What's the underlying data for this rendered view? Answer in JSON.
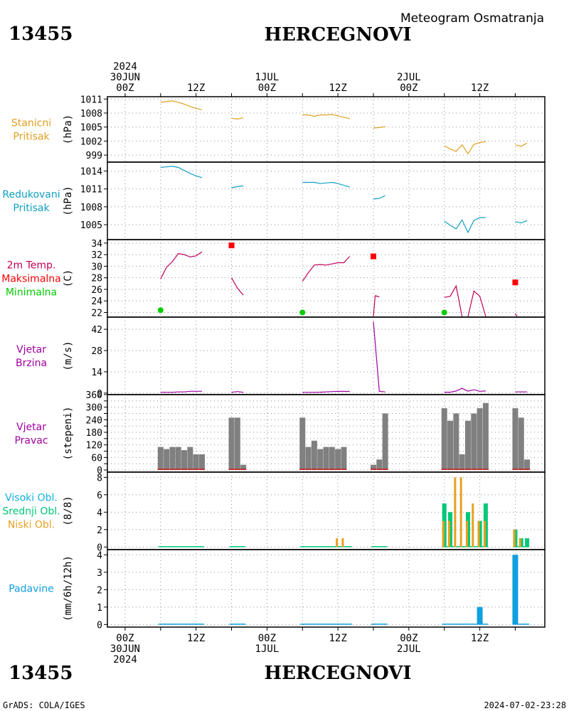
{
  "header": {
    "station_id": "13455",
    "station_name": "HERCEGNOVI",
    "product": "Meteogram Osmatranja",
    "footer_left": "GrADS: COLA/IGES",
    "footer_right": "2024-07-02-23:28"
  },
  "colors": {
    "pressure": "#e0a020",
    "reduced": "#10a0c0",
    "temp": "#c0005a",
    "max": "#ff0000",
    "min": "#00cc00",
    "wind": "#a000a0",
    "dir": "#808080",
    "dir_small": "#c03030",
    "high_cloud": "#10b0e0",
    "mid_cloud": "#00c878",
    "low_cloud": "#e8a020",
    "precip": "#10a0e0"
  },
  "time_axis": {
    "top_labels": [
      {
        "t": 0,
        "lines": [
          "2024",
          "30JUN",
          "00Z"
        ]
      },
      {
        "t": 12,
        "lines": [
          "12Z"
        ]
      },
      {
        "t": 24,
        "lines": [
          "1JUL",
          "00Z"
        ]
      },
      {
        "t": 36,
        "lines": [
          "12Z"
        ]
      },
      {
        "t": 48,
        "lines": [
          "2JUL",
          "00Z"
        ]
      },
      {
        "t": 60,
        "lines": [
          "12Z"
        ]
      }
    ],
    "bottom_labels": [
      {
        "t": 0,
        "lines": [
          "00Z",
          "30JUN",
          "2024"
        ]
      },
      {
        "t": 12,
        "lines": [
          "12Z"
        ]
      },
      {
        "t": 24,
        "lines": [
          "00Z",
          "1JUL"
        ]
      },
      {
        "t": 36,
        "lines": [
          "12Z"
        ]
      },
      {
        "t": 48,
        "lines": [
          "00Z",
          "2JUL"
        ]
      },
      {
        "t": 60,
        "lines": [
          "12Z"
        ]
      }
    ]
  },
  "chart_data": [
    {
      "type": "line",
      "id": "p1",
      "labels": [
        "Stanicni",
        "Pritisak"
      ],
      "ylabel": "(hPa)",
      "yticks": [
        999,
        1002,
        1005,
        1008,
        1011
      ],
      "ylim": [
        997.5,
        1011.5
      ],
      "series": [
        {
          "color_key": "pressure",
          "segments": [
            [
              [
                6,
                1010.3
              ],
              [
                7,
                1010.5
              ],
              [
                8,
                1010.6
              ],
              [
                9,
                1010.3
              ],
              [
                10,
                1009.9
              ],
              [
                11,
                1009.4
              ],
              [
                12,
                1009.0
              ],
              [
                13,
                1008.7
              ]
            ],
            [
              [
                18,
                1006.9
              ],
              [
                19,
                1006.7
              ],
              [
                20,
                1007.0
              ]
            ],
            [
              [
                30,
                1007.6
              ],
              [
                31,
                1007.6
              ],
              [
                32,
                1007.3
              ],
              [
                33,
                1007.6
              ],
              [
                34,
                1007.6
              ],
              [
                35,
                1007.7
              ],
              [
                36,
                1007.4
              ],
              [
                37,
                1007.1
              ],
              [
                38,
                1006.8
              ]
            ],
            [
              [
                42,
                1004.8
              ],
              [
                43,
                1004.9
              ],
              [
                44,
                1005.1
              ]
            ],
            [
              [
                54,
                1001.0
              ],
              [
                55,
                1000.3
              ],
              [
                56,
                999.8
              ],
              [
                57,
                1001.2
              ],
              [
                58,
                999.3
              ],
              [
                59,
                1001.3
              ],
              [
                60,
                1001.7
              ],
              [
                61,
                1001.9
              ]
            ],
            [
              [
                66,
                1001.2
              ],
              [
                67,
                1000.9
              ],
              [
                68,
                1001.6
              ]
            ]
          ]
        }
      ]
    },
    {
      "type": "line",
      "id": "p2",
      "labels": [
        "Redukovani",
        "Pritisak"
      ],
      "ylabel": "(hPa)",
      "yticks": [
        1005,
        1008,
        1011,
        1014
      ],
      "ylim": [
        1002.5,
        1015.5
      ],
      "series": [
        {
          "color_key": "reduced",
          "segments": [
            [
              [
                6,
                1014.6
              ],
              [
                7,
                1014.7
              ],
              [
                8,
                1014.8
              ],
              [
                9,
                1014.6
              ],
              [
                10,
                1014.1
              ],
              [
                11,
                1013.6
              ],
              [
                12,
                1013.2
              ],
              [
                13,
                1012.9
              ]
            ],
            [
              [
                18,
                1011.2
              ],
              [
                19,
                1011.4
              ],
              [
                20,
                1011.5
              ]
            ],
            [
              [
                30,
                1012.1
              ],
              [
                31,
                1012.1
              ],
              [
                32,
                1012.1
              ],
              [
                33,
                1011.9
              ],
              [
                34,
                1012.0
              ],
              [
                35,
                1012.1
              ],
              [
                36,
                1011.9
              ],
              [
                37,
                1011.6
              ],
              [
                38,
                1011.3
              ]
            ],
            [
              [
                42,
                1009.3
              ],
              [
                43,
                1009.4
              ],
              [
                44,
                1009.9
              ]
            ],
            [
              [
                54,
                1005.6
              ],
              [
                55,
                1004.9
              ],
              [
                56,
                1004.3
              ],
              [
                57,
                1005.8
              ],
              [
                58,
                1003.7
              ],
              [
                59,
                1005.7
              ],
              [
                60,
                1006.2
              ],
              [
                61,
                1006.2
              ]
            ],
            [
              [
                66,
                1005.5
              ],
              [
                67,
                1005.3
              ],
              [
                68,
                1005.7
              ]
            ]
          ]
        }
      ]
    },
    {
      "type": "line",
      "id": "p3",
      "labels": [
        "2m Temp.",
        "Maksimalna",
        "Minimalna"
      ],
      "label_color_keys": [
        "temp",
        "max",
        "min"
      ],
      "ylabel": "(C)",
      "yticks": [
        22,
        24,
        26,
        28,
        30,
        32,
        34
      ],
      "ylim": [
        21.2,
        34.6
      ],
      "series": [
        {
          "color_key": "temp",
          "segments": [
            [
              [
                6,
                27.8
              ],
              [
                7,
                29.8
              ],
              [
                8,
                30.8
              ],
              [
                9,
                32.2
              ],
              [
                10,
                32.0
              ],
              [
                11,
                31.6
              ],
              [
                12,
                31.8
              ],
              [
                13,
                32.5
              ]
            ],
            [
              [
                18,
                28.0
              ],
              [
                19,
                26.2
              ],
              [
                20,
                25.0
              ]
            ],
            [
              [
                30,
                27.4
              ],
              [
                31,
                28.9
              ],
              [
                32,
                30.2
              ],
              [
                33,
                30.3
              ],
              [
                34,
                30.2
              ],
              [
                35,
                30.4
              ],
              [
                36,
                30.6
              ],
              [
                37,
                30.6
              ],
              [
                38,
                31.7
              ]
            ],
            [
              [
                42,
                20.5
              ],
              [
                42.3,
                24.9
              ],
              [
                43,
                24.7
              ]
            ],
            [
              [
                54,
                24.6
              ],
              [
                55,
                24.8
              ],
              [
                56,
                26.6
              ],
              [
                57,
                20.0
              ]
            ],
            [
              [
                58,
                20.0
              ],
              [
                59,
                25.7
              ],
              [
                60,
                24.8
              ],
              [
                61,
                20.0
              ]
            ],
            [
              [
                66,
                21.8
              ],
              [
                66.3,
                21.1
              ]
            ]
          ]
        }
      ],
      "points": [
        {
          "t": 18,
          "v": 33.6,
          "shape": "square",
          "color_key": "max"
        },
        {
          "t": 42,
          "v": 31.7,
          "shape": "square",
          "color_key": "max"
        },
        {
          "t": 66,
          "v": 27.2,
          "shape": "square",
          "color_key": "max"
        },
        {
          "t": 6,
          "v": 22.4,
          "shape": "circle",
          "color_key": "min"
        },
        {
          "t": 30,
          "v": 22.0,
          "shape": "circle",
          "color_key": "min"
        },
        {
          "t": 54,
          "v": 22.0,
          "shape": "circle",
          "color_key": "min"
        }
      ]
    },
    {
      "type": "line",
      "id": "p4",
      "labels": [
        "Vjetar",
        "Brzina"
      ],
      "ylabel": "(m/s)",
      "yticks": [
        0,
        14,
        28,
        42
      ],
      "ylim": [
        -1,
        50
      ],
      "series": [
        {
          "color_key": "wind",
          "segments": [
            [
              [
                6,
                0.5
              ],
              [
                7,
                0.5
              ],
              [
                8,
                0.5
              ],
              [
                9,
                0.8
              ],
              [
                10,
                0.8
              ],
              [
                11,
                1.2
              ],
              [
                12,
                1.2
              ],
              [
                13,
                1.2
              ]
            ],
            [
              [
                18,
                0.5
              ],
              [
                19,
                1.0
              ],
              [
                20,
                0.5
              ]
            ],
            [
              [
                30,
                0.5
              ],
              [
                31,
                0.5
              ],
              [
                32,
                0.5
              ],
              [
                33,
                0.6
              ],
              [
                34,
                0.8
              ],
              [
                35,
                1.0
              ],
              [
                36,
                1.2
              ],
              [
                37,
                1.1
              ],
              [
                38,
                1.1
              ]
            ],
            [
              [
                42,
                47.0
              ],
              [
                43,
                1.2
              ],
              [
                44,
                0.8
              ]
            ],
            [
              [
                54,
                0.6
              ],
              [
                55,
                0.6
              ],
              [
                56,
                1.4
              ],
              [
                57,
                3.1
              ],
              [
                58,
                1.3
              ],
              [
                59,
                2.2
              ],
              [
                60,
                1.2
              ],
              [
                61,
                1.4
              ]
            ],
            [
              [
                66,
                0.8
              ],
              [
                67,
                0.8
              ],
              [
                68,
                0.8
              ]
            ]
          ]
        }
      ]
    },
    {
      "type": "bar",
      "id": "p5",
      "labels": [
        "Vjetar",
        "Pravac"
      ],
      "ylabel": "(stepeni)",
      "yticks": [
        0,
        30,
        60,
        90,
        120,
        150,
        180,
        210,
        240,
        270,
        300,
        330,
        360
      ],
      "ytick_labels": [
        "0",
        "60",
        "120",
        "180",
        "240",
        "300",
        "360"
      ],
      "ylim": [
        -10,
        360
      ],
      "bars": [
        {
          "t": 6,
          "v": 110
        },
        {
          "t": 7,
          "v": 100
        },
        {
          "t": 8,
          "v": 110
        },
        {
          "t": 9,
          "v": 110
        },
        {
          "t": 10,
          "v": 95
        },
        {
          "t": 11,
          "v": 110
        },
        {
          "t": 12,
          "v": 75
        },
        {
          "t": 13,
          "v": 75
        },
        {
          "t": 18,
          "v": 250
        },
        {
          "t": 19,
          "v": 250
        },
        {
          "t": 20,
          "v": 25
        },
        {
          "t": 30,
          "v": 250
        },
        {
          "t": 31,
          "v": 110
        },
        {
          "t": 32,
          "v": 140
        },
        {
          "t": 33,
          "v": 100
        },
        {
          "t": 34,
          "v": 110
        },
        {
          "t": 35,
          "v": 110
        },
        {
          "t": 36,
          "v": 100
        },
        {
          "t": 37,
          "v": 110
        },
        {
          "t": 42,
          "v": 25
        },
        {
          "t": 43,
          "v": 50
        },
        {
          "t": 44,
          "v": 270
        },
        {
          "t": 54,
          "v": 295
        },
        {
          "t": 55,
          "v": 235
        },
        {
          "t": 56,
          "v": 270
        },
        {
          "t": 57,
          "v": 75
        },
        {
          "t": 58,
          "v": 235
        },
        {
          "t": 59,
          "v": 270
        },
        {
          "t": 60,
          "v": 295
        },
        {
          "t": 61,
          "v": 320
        },
        {
          "t": 66,
          "v": 295
        },
        {
          "t": 67,
          "v": 250
        },
        {
          "t": 68,
          "v": 50
        }
      ]
    },
    {
      "type": "bar",
      "id": "p6",
      "labels": [
        "Visoki Obl.",
        "Srednji Obl.",
        "Niski Obl."
      ],
      "label_color_keys": [
        "high_cloud",
        "mid_cloud",
        "low_cloud"
      ],
      "ylabel": "(8/8)",
      "yticks": [
        0,
        2,
        4,
        6,
        8
      ],
      "ylim": [
        -0.3,
        8.6
      ],
      "bars": [
        {
          "t": 36,
          "low": 1.0,
          "mid": 0
        },
        {
          "t": 37,
          "low": 1.0,
          "mid": 0
        },
        {
          "t": 54,
          "low": 3.0,
          "mid": 5.0
        },
        {
          "t": 55,
          "low": 3.0,
          "mid": 4.0
        },
        {
          "t": 56,
          "low": 8.0,
          "mid": 0
        },
        {
          "t": 57,
          "low": 8.0,
          "mid": 0
        },
        {
          "t": 58,
          "low": 3.0,
          "mid": 4.0
        },
        {
          "t": 59,
          "low": 5.0,
          "mid": 0
        },
        {
          "t": 60,
          "low": 3.0,
          "mid": 3.0
        },
        {
          "t": 61,
          "low": 3.0,
          "mid": 5.0
        },
        {
          "t": 66,
          "low": 2.0,
          "mid": 2.0
        },
        {
          "t": 67,
          "low": 1.0,
          "mid": 1.0
        },
        {
          "t": 68,
          "low": 0,
          "mid": 1.0
        }
      ]
    },
    {
      "type": "bar",
      "id": "p7",
      "labels": [
        "Padavine"
      ],
      "ylabel": "(mm/6h/12h)",
      "yticks": [
        0,
        1,
        2,
        3,
        4
      ],
      "ylim": [
        -0.15,
        4.3
      ],
      "bars": [
        {
          "t": 60,
          "v": 1.0
        },
        {
          "t": 66,
          "v": 4.0
        }
      ]
    }
  ]
}
